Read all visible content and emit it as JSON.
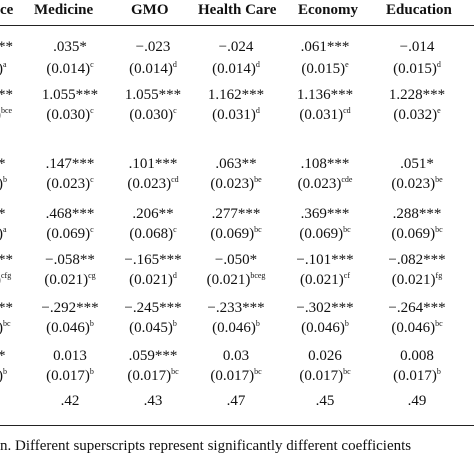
{
  "headers": {
    "h0": "ce",
    "h1": "Medicine",
    "h2": "GMO",
    "h3": "Health Care",
    "h4": "Economy",
    "h5": "Education"
  },
  "left_col": [
    {
      "v": "**",
      "s": ""
    },
    {
      "v": ")",
      "s": "a"
    },
    {
      "v": "**",
      "s": ""
    },
    {
      "v": ")",
      "s": "bce"
    },
    {
      "v": "*",
      "s": ""
    },
    {
      "v": ")",
      "s": "b"
    },
    {
      "v": "*",
      "s": ""
    },
    {
      "v": ")",
      "s": "a"
    },
    {
      "v": "**",
      "s": ""
    },
    {
      "v": ")",
      "s": "cfg"
    },
    {
      "v": "**",
      "s": ""
    },
    {
      "v": ")",
      "s": "bc"
    },
    {
      "v": "*",
      "s": ""
    },
    {
      "v": ")",
      "s": "b"
    }
  ],
  "rows": [
    [
      {
        "v": ".035*",
        "s": ""
      },
      {
        "v": "−.023",
        "s": ""
      },
      {
        "v": "−.024",
        "s": ""
      },
      {
        "v": ".061***",
        "s": ""
      },
      {
        "v": "−.014",
        "s": ""
      }
    ],
    [
      {
        "v": "(0.014)",
        "s": "c"
      },
      {
        "v": "(0.014)",
        "s": "d"
      },
      {
        "v": "(0.014)",
        "s": "d"
      },
      {
        "v": "(0.015)",
        "s": "e"
      },
      {
        "v": "(0.015)",
        "s": "d"
      }
    ],
    [
      {
        "v": "1.055***",
        "s": ""
      },
      {
        "v": "1.055***",
        "s": ""
      },
      {
        "v": "1.162***",
        "s": ""
      },
      {
        "v": "1.136***",
        "s": ""
      },
      {
        "v": "1.228***",
        "s": ""
      }
    ],
    [
      {
        "v": "(0.030)",
        "s": "c"
      },
      {
        "v": "(0.030)",
        "s": "c"
      },
      {
        "v": "(0.031)",
        "s": "d"
      },
      {
        "v": "(0.031)",
        "s": "cd"
      },
      {
        "v": "(0.032)",
        "s": "e"
      }
    ],
    [
      {
        "v": ".147***",
        "s": ""
      },
      {
        "v": ".101***",
        "s": ""
      },
      {
        "v": ".063**",
        "s": ""
      },
      {
        "v": ".108***",
        "s": ""
      },
      {
        "v": ".051*",
        "s": ""
      }
    ],
    [
      {
        "v": "(0.023)",
        "s": "c"
      },
      {
        "v": "(0.023)",
        "s": "cd"
      },
      {
        "v": "(0.023)",
        "s": "be"
      },
      {
        "v": "(0.023)",
        "s": "cde"
      },
      {
        "v": "(0.023)",
        "s": "be"
      }
    ],
    [
      {
        "v": ".468***",
        "s": ""
      },
      {
        "v": ".206**",
        "s": ""
      },
      {
        "v": ".277***",
        "s": ""
      },
      {
        "v": ".369***",
        "s": ""
      },
      {
        "v": ".288***",
        "s": ""
      }
    ],
    [
      {
        "v": "(0.069)",
        "s": "c"
      },
      {
        "v": "(0.068)",
        "s": "c"
      },
      {
        "v": "(0.069)",
        "s": "bc"
      },
      {
        "v": "(0.069)",
        "s": "bc"
      },
      {
        "v": "(0.069)",
        "s": "bc"
      }
    ],
    [
      {
        "v": "−.058**",
        "s": ""
      },
      {
        "v": "−.165***",
        "s": ""
      },
      {
        "v": "−.050*",
        "s": ""
      },
      {
        "v": "−.101***",
        "s": ""
      },
      {
        "v": "−.082***",
        "s": ""
      }
    ],
    [
      {
        "v": "(0.021)",
        "s": "cg"
      },
      {
        "v": "(0.021)",
        "s": "d"
      },
      {
        "v": "(0.021)",
        "s": "bceg"
      },
      {
        "v": "(0.021)",
        "s": "cf"
      },
      {
        "v": "(0.021)",
        "s": "fg"
      }
    ],
    [
      {
        "v": "−.292***",
        "s": ""
      },
      {
        "v": "−.245***",
        "s": ""
      },
      {
        "v": "−.233***",
        "s": ""
      },
      {
        "v": "−.302***",
        "s": ""
      },
      {
        "v": "−.264***",
        "s": ""
      }
    ],
    [
      {
        "v": "(0.046)",
        "s": "b"
      },
      {
        "v": "(0.045)",
        "s": "b"
      },
      {
        "v": "(0.046)",
        "s": "b"
      },
      {
        "v": "(0.046)",
        "s": "b"
      },
      {
        "v": "(0.046)",
        "s": "bc"
      }
    ],
    [
      {
        "v": "0.013",
        "s": ""
      },
      {
        "v": ".059***",
        "s": ""
      },
      {
        "v": "0.03",
        "s": ""
      },
      {
        "v": "0.026",
        "s": ""
      },
      {
        "v": "0.008",
        "s": ""
      }
    ],
    [
      {
        "v": "(0.017)",
        "s": "b"
      },
      {
        "v": "(0.017)",
        "s": "bc"
      },
      {
        "v": "(0.017)",
        "s": "bc"
      },
      {
        "v": "(0.017)",
        "s": "bc"
      },
      {
        "v": "(0.017)",
        "s": "b"
      }
    ],
    [
      {
        "v": ".42",
        "s": ""
      },
      {
        "v": ".43",
        "s": ""
      },
      {
        "v": ".47",
        "s": ""
      },
      {
        "v": ".45",
        "s": ""
      },
      {
        "v": ".49",
        "s": ""
      }
    ]
  ],
  "footnote": "n. Different superscripts represent significantly different coefficients"
}
